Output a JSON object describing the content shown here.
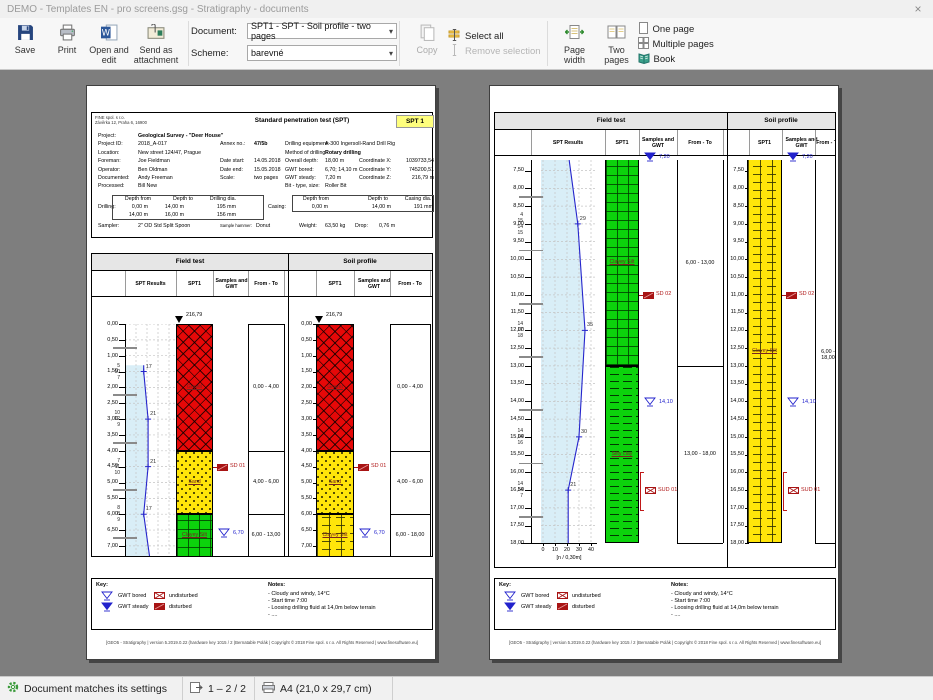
{
  "window": {
    "title": "DEMO - Templates EN - pro screens.gsg - Stratigraphy - documents",
    "close_glyph": "×"
  },
  "toolbar": {
    "save": "Save",
    "print": "Print",
    "open_edit": "Open and edit",
    "send_attachment": "Send as attachment",
    "document_label": "Document:",
    "document_value": "SPT1 - SPT - Soil profile - two pages",
    "scheme_label": "Scheme:",
    "scheme_value": "barevné",
    "copy": "Copy",
    "select_all": "Select all",
    "remove_selection": "Remove selection",
    "page_width": "Page width",
    "two_pages": "Two pages",
    "one_page": "One page",
    "multiple_pages": "Multiple pages",
    "book": "Book"
  },
  "statusbar": {
    "status": "Document matches its settings",
    "pages": "1 – 2 / 2",
    "paper": "A4 (21,0 x 29,7 cm)"
  },
  "report": {
    "company": [
      "FINE spol. s r.o.",
      "Závěrka 12, Praha 6, 16900"
    ],
    "title": "Standard penetration test (SPT)",
    "badge": "SPT 1",
    "rows": [
      [
        {
          "l": "Project:",
          "v": "Geological Survey - \"Deer House\"",
          "b": true
        }
      ],
      [
        {
          "l": "Project ID:",
          "v": "2018_A-017"
        },
        {
          "l": "Annex no.:",
          "v": "47/5b",
          "b": true
        },
        {
          "l": "Drilling equipment:",
          "v": "A-300 Ingersoll-Rand Drill Rig"
        }
      ],
      [
        {
          "l": "Location:",
          "v": "New street 124/47, Prague"
        },
        {
          "l": "Method of drilling:",
          "v": "Rotary drilling",
          "b": true
        }
      ],
      [
        {
          "l": "Foreman:",
          "v": "Joe Fieldman"
        },
        {
          "l": "Date start:",
          "v": "14.05.2018"
        },
        {
          "l": "Overall depth:",
          "v": "18,00 m"
        },
        {
          "l": "Coordinate X:",
          "v": "1039733,54",
          "r": true
        }
      ],
      [
        {
          "l": "Operator:",
          "v": "Ben Oldman"
        },
        {
          "l": "Date end:",
          "v": "15.05.2018"
        },
        {
          "l": "GWT bored:",
          "v": "6,70; 14,10 m"
        },
        {
          "l": "Coordinate Y:",
          "v": "745200,51",
          "r": true
        }
      ],
      [
        {
          "l": "Documented:",
          "v": "Andy Freeman"
        },
        {
          "l": "Scale:",
          "v": "two pages"
        },
        {
          "l": "GWT steady:",
          "v": "7,20 m"
        },
        {
          "l": "Coordinate Z:",
          "v": "216,79 m",
          "r": true
        }
      ],
      [
        {
          "l": "Processed:",
          "v": "Bill New"
        },
        {
          "l": "Bit - type, size:",
          "v": "Roller Bit"
        }
      ]
    ],
    "drill": {
      "drilling_label": "Drilling:",
      "cols": [
        "Depth from",
        "Depth to",
        "Drilling dia."
      ],
      "drilling_rows": [
        [
          "0,00 m",
          "14,00 m",
          "195 mm"
        ],
        [
          "14,00 m",
          "16,00 m",
          "156 mm"
        ]
      ],
      "casing_label": "Casing:",
      "casing_cols": [
        "Depth from",
        "Depth to",
        "Casing dia."
      ],
      "casing_rows": [
        [
          "0,00 m",
          "14,00 m",
          "191 mm"
        ]
      ]
    },
    "sampler": [
      {
        "l": "Sampler:",
        "v": "2\" OD Std Split Spoon"
      },
      {
        "l": "Sample hammer:",
        "v": "Donut",
        "small": true
      },
      {
        "l": "Weight:",
        "v": "63,50 kg"
      },
      {
        "l": "Drop:",
        "v": "0,76 m"
      }
    ],
    "key": {
      "label": "Key:",
      "gwt": [
        {
          "label": "GWT bored",
          "type": "bored"
        },
        {
          "label": "GWT steady",
          "type": "steady"
        }
      ],
      "samples": [
        {
          "label": "undisturbed",
          "type": "undisturbed"
        },
        {
          "label": "disturbed",
          "type": "disturbed"
        }
      ]
    },
    "notes": {
      "label": "Notes:",
      "lines": [
        "- Cloudy and windy, 14°C",
        "- Start time 7:00",
        "- Loosing drilling fluid at 14,0m below terrain",
        "- ...."
      ]
    },
    "footer": "[GEO5 - Stratigraphy | version 5.2019.0.22 (hardware key 1015 / 2 (Bernatable Polák | Copyright © 2018 Fine spol. s r.o. All Rights Reserved | www.finesoftware.eu]"
  },
  "chart_data": {
    "type": "borehole-log",
    "sections": {
      "field_test": "Field test",
      "soil_profile": "Soil profile"
    },
    "columns": {
      "spt_results": "SPT Results",
      "log": "SPT1",
      "samples": "Samples and GWT",
      "from_to": "From - To"
    },
    "xaxis": {
      "ticks": [
        0,
        10,
        20,
        30,
        40
      ],
      "label": "[n / 0,30m]",
      "max": 40
    },
    "elevation": "216,79",
    "depth_step": 0.5,
    "pages": [
      {
        "number": 1,
        "depth_start": 0.0,
        "depth_end": 7.35,
        "show_header_block": true,
        "show_elevation": true,
        "show_axis": false,
        "spt_points": [
          {
            "depth": 1.5,
            "n": 17,
            "blows": [
              5,
              10,
              7
            ]
          },
          {
            "depth": 3.0,
            "n": 21,
            "blows": [
              10,
              12,
              9
            ]
          },
          {
            "depth": 4.5,
            "n": 21,
            "blows": [
              7,
              11,
              10
            ]
          },
          {
            "depth": 6.0,
            "n": 17,
            "blows": [
              8,
              8,
              9
            ]
          }
        ],
        "line_enter": {
          "depth": 1.3,
          "n": 17
        },
        "line_exit": {
          "depth": 7.35,
          "n": 22.4
        },
        "field_strata": [
          {
            "from": 0,
            "to": 4,
            "name": "Gravel",
            "pattern": "gravel-red"
          },
          {
            "from": 4,
            "to": 6,
            "name": "Sand",
            "pattern": "sand-yellow"
          },
          {
            "from": 6,
            "to": 13,
            "name": "Clayey Silt",
            "pattern": "silt-green"
          }
        ],
        "profile_strata": [
          {
            "from": 0,
            "to": 4,
            "name": "Gravel",
            "pattern": "gravel-red"
          },
          {
            "from": 4,
            "to": 6,
            "name": "Sand",
            "pattern": "sand-yellow"
          },
          {
            "from": 6,
            "to": 18,
            "name": "Clayey Silt",
            "pattern": "silt-yellow"
          }
        ],
        "field_from_to": [
          {
            "from": 0,
            "to": 4,
            "label": "0,00 - 4,00"
          },
          {
            "from": 4,
            "to": 6,
            "label": "4,00 - 6,00"
          },
          {
            "from": 6,
            "to": 13,
            "label": "6,00 - 13,00"
          }
        ],
        "profile_from_to": [
          {
            "from": 0,
            "to": 4,
            "label": "0,00 - 4,00"
          },
          {
            "from": 4,
            "to": 6,
            "label": "4,00 - 6,00"
          },
          {
            "from": 6,
            "to": 18,
            "label": "6,00 - 18,00"
          }
        ],
        "samples": [
          {
            "depth": 4.5,
            "label": "SD 01",
            "type": "disturbed"
          }
        ],
        "gwt": [
          {
            "depth": 6.7,
            "label": "6,70",
            "type": "bored"
          }
        ]
      },
      {
        "number": 2,
        "depth_start": 7.2,
        "depth_end": 18.0,
        "show_header_block": false,
        "show_elevation": false,
        "show_axis": true,
        "spt_points": [
          {
            "depth": 9.0,
            "n": 29,
            "blows": [
              4,
              15,
              14,
              15
            ]
          },
          {
            "depth": 12.0,
            "n": 35,
            "blows": [
              14,
              17,
              18
            ]
          },
          {
            "depth": 15.0,
            "n": 30,
            "blows": [
              14,
              14,
              16
            ]
          },
          {
            "depth": 16.5,
            "n": 21,
            "blows": [
              14,
              14,
              7
            ]
          }
        ],
        "line_enter": {
          "depth": 7.2,
          "n": 21.8
        },
        "line_exit": {
          "depth": 18.0,
          "n": 21
        },
        "field_strata": [
          {
            "from": 6,
            "to": 13,
            "name": "Clayey Silt",
            "pattern": "silt-green"
          },
          {
            "from": 13,
            "to": 18,
            "name": "Silty clay",
            "pattern": "clay-green"
          }
        ],
        "profile_strata": [
          {
            "from": 6,
            "to": 18,
            "name": "Clayey Silt",
            "pattern": "silt-yellow"
          }
        ],
        "field_from_to": [
          {
            "from": 6,
            "to": 13,
            "label": "6,00 - 13,00"
          },
          {
            "from": 13,
            "to": 18,
            "label": "13,00 - 18,00"
          }
        ],
        "profile_from_to": [
          {
            "from": 6,
            "to": 18,
            "label": "6,00 - 18,00"
          }
        ],
        "samples": [
          {
            "depth": 11.0,
            "label": "SD 02",
            "type": "disturbed"
          },
          {
            "depth": 16.5,
            "label": "SUD 01",
            "type": "undisturbed",
            "bracket": [
              16.0,
              17.05
            ]
          }
        ],
        "gwt": [
          {
            "depth": 7.2,
            "label": "7,20",
            "type": "steady"
          },
          {
            "depth": 14.1,
            "label": "14,10",
            "type": "bored"
          }
        ]
      }
    ]
  }
}
